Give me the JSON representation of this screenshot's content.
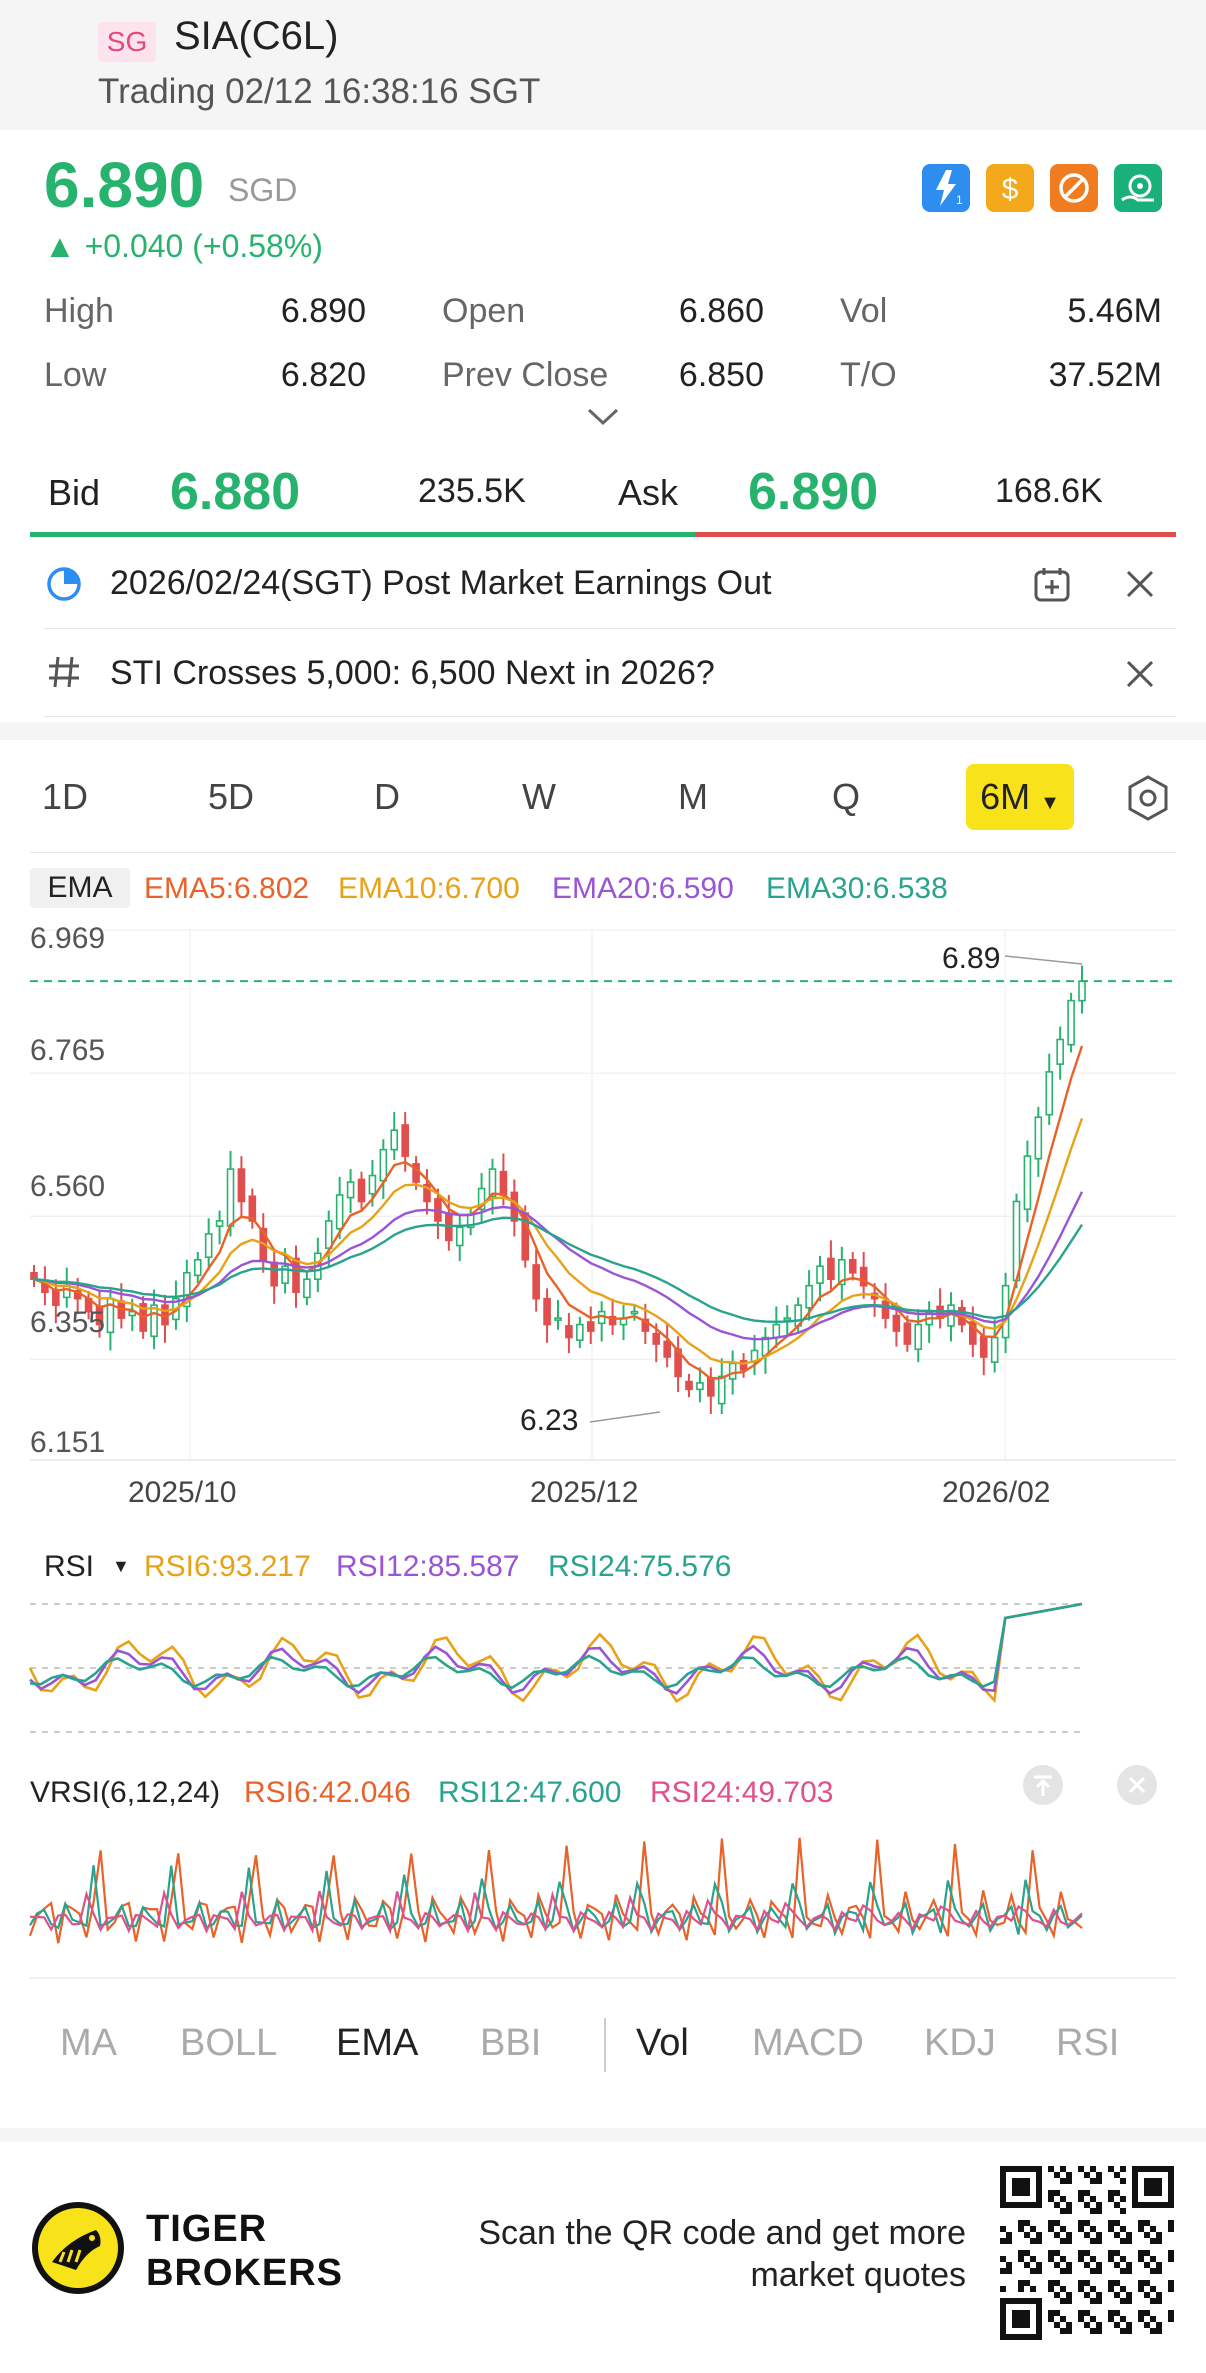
{
  "header": {
    "market_badge": "SG",
    "title": "SIA(C6L)",
    "status": "Trading 02/12 16:38:16 SGT"
  },
  "quote": {
    "price": "6.890",
    "currency": "SGD",
    "change": "▲ +0.040 (+0.58%)",
    "icons": [
      "lightning-level1-icon",
      "dollar-icon",
      "no-short-icon",
      "lifebuoy-icon"
    ],
    "stats": [
      {
        "label": "High",
        "value": "6.890"
      },
      {
        "label": "Open",
        "value": "6.860"
      },
      {
        "label": "Vol",
        "value": "5.46M"
      },
      {
        "label": "Low",
        "value": "6.820"
      },
      {
        "label": "Prev Close",
        "value": "6.850"
      },
      {
        "label": "T/O",
        "value": "37.52M"
      }
    ]
  },
  "bidask": {
    "bid_label": "Bid",
    "bid_price": "6.880",
    "bid_size": "235.5K",
    "ask_label": "Ask",
    "ask_price": "6.890",
    "ask_size": "168.6K",
    "bid_share": 0.58
  },
  "notices": [
    {
      "icon": "earnings-chart-icon",
      "text": "2026/02/24(SGT)  Post Market Earnings Out"
    },
    {
      "icon": "hashtag-icon",
      "text": "STI Crosses 5,000: 6,500 Next in 2026?"
    }
  ],
  "periods": [
    "1D",
    "5D",
    "D",
    "W",
    "M",
    "Q"
  ],
  "active_period": "6M",
  "colors": {
    "up": "#27b36e",
    "down": "#e04e4e",
    "ema5": "#e8622a",
    "ema10": "#e8a21a",
    "ema20": "#9a55d6",
    "ema30": "#2aa38e"
  },
  "ema_legend": {
    "tag": "EMA",
    "ema5": "EMA5:6.802",
    "ema10": "EMA10:6.700",
    "ema20": "EMA20:6.590",
    "ema30": "EMA30:6.538"
  },
  "chart_data": {
    "type": "candlestick",
    "y_ticks": [
      "6.969",
      "6.765",
      "6.560",
      "6.355",
      "6.151"
    ],
    "x_ticks": [
      "2025/10",
      "2025/12",
      "2026/02"
    ],
    "ylim": [
      6.151,
      6.969
    ],
    "high_label": "6.89",
    "low_label": "6.23",
    "last_price_line": 6.89,
    "close": [
      6.43,
      6.41,
      6.39,
      6.42,
      6.4,
      6.38,
      6.36,
      6.4,
      6.37,
      6.38,
      6.35,
      6.39,
      6.36,
      6.4,
      6.44,
      6.46,
      6.5,
      6.52,
      6.6,
      6.55,
      6.52,
      6.46,
      6.42,
      6.45,
      6.41,
      6.43,
      6.47,
      6.52,
      6.56,
      6.58,
      6.55,
      6.59,
      6.63,
      6.66,
      6.62,
      6.58,
      6.55,
      6.52,
      6.49,
      6.51,
      6.53,
      6.57,
      6.6,
      6.56,
      6.52,
      6.46,
      6.4,
      6.36,
      6.37,
      6.34,
      6.36,
      6.35,
      6.38,
      6.36,
      6.37,
      6.38,
      6.35,
      6.33,
      6.31,
      6.28,
      6.26,
      6.27,
      6.25,
      6.28,
      6.3,
      6.29,
      6.32,
      6.34,
      6.36,
      6.37,
      6.39,
      6.42,
      6.45,
      6.43,
      6.46,
      6.44,
      6.42,
      6.4,
      6.37,
      6.35,
      6.33,
      6.36,
      6.38,
      6.37,
      6.39,
      6.36,
      6.33,
      6.31,
      6.34,
      6.42,
      6.55,
      6.62,
      6.68,
      6.75,
      6.8,
      6.86,
      6.89
    ],
    "ema5_end": 6.802,
    "ema10_end": 6.7,
    "ema20_end": 6.59,
    "ema30_end": 6.538
  },
  "rsi": {
    "label": "RSI",
    "rsi6": "RSI6:93.217",
    "rsi12": "RSI12:85.587",
    "rsi24": "RSI24:75.576"
  },
  "vrsi": {
    "label": "VRSI(6,12,24)",
    "rsi6": "RSI6:42.046",
    "rsi12": "RSI12:47.600",
    "rsi24": "RSI24:49.703"
  },
  "indicator_tabs": {
    "main": [
      "MA",
      "BOLL",
      "EMA",
      "BBI"
    ],
    "sub": [
      "Vol",
      "MACD",
      "KDJ",
      "RSI"
    ],
    "active_main": "EMA",
    "active_sub": "Vol"
  },
  "footer": {
    "brand_line1": "TIGER",
    "brand_line2": "BROKERS",
    "scan_text_1": "Scan the QR code and get more",
    "scan_text_2": "market quotes"
  }
}
